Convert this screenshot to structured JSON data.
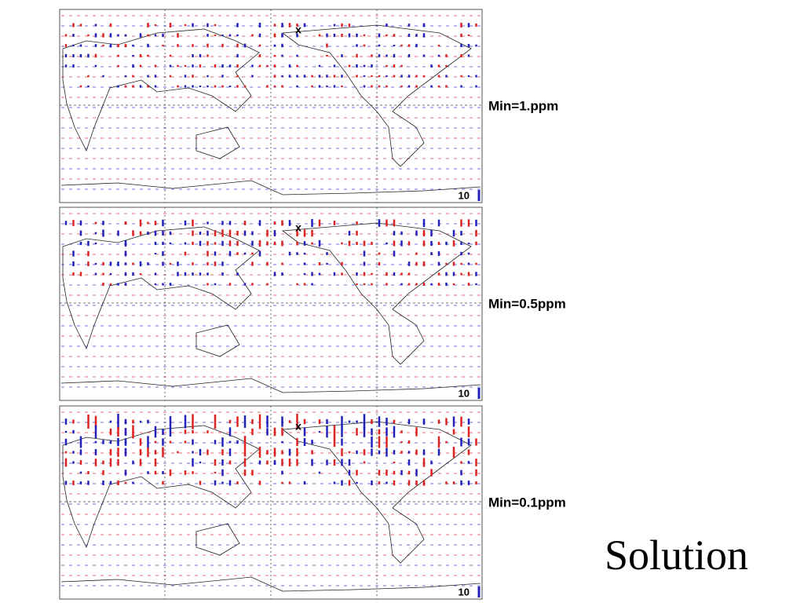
{
  "panels": [
    {
      "label": "Min=1.ppm",
      "scale_label": "10",
      "marker": "x"
    },
    {
      "label": "Min=0.5ppm",
      "scale_label": "10",
      "marker": "x"
    },
    {
      "label": "Min=0.1ppm",
      "scale_label": "10",
      "marker": "x"
    }
  ],
  "title": "Solution"
}
